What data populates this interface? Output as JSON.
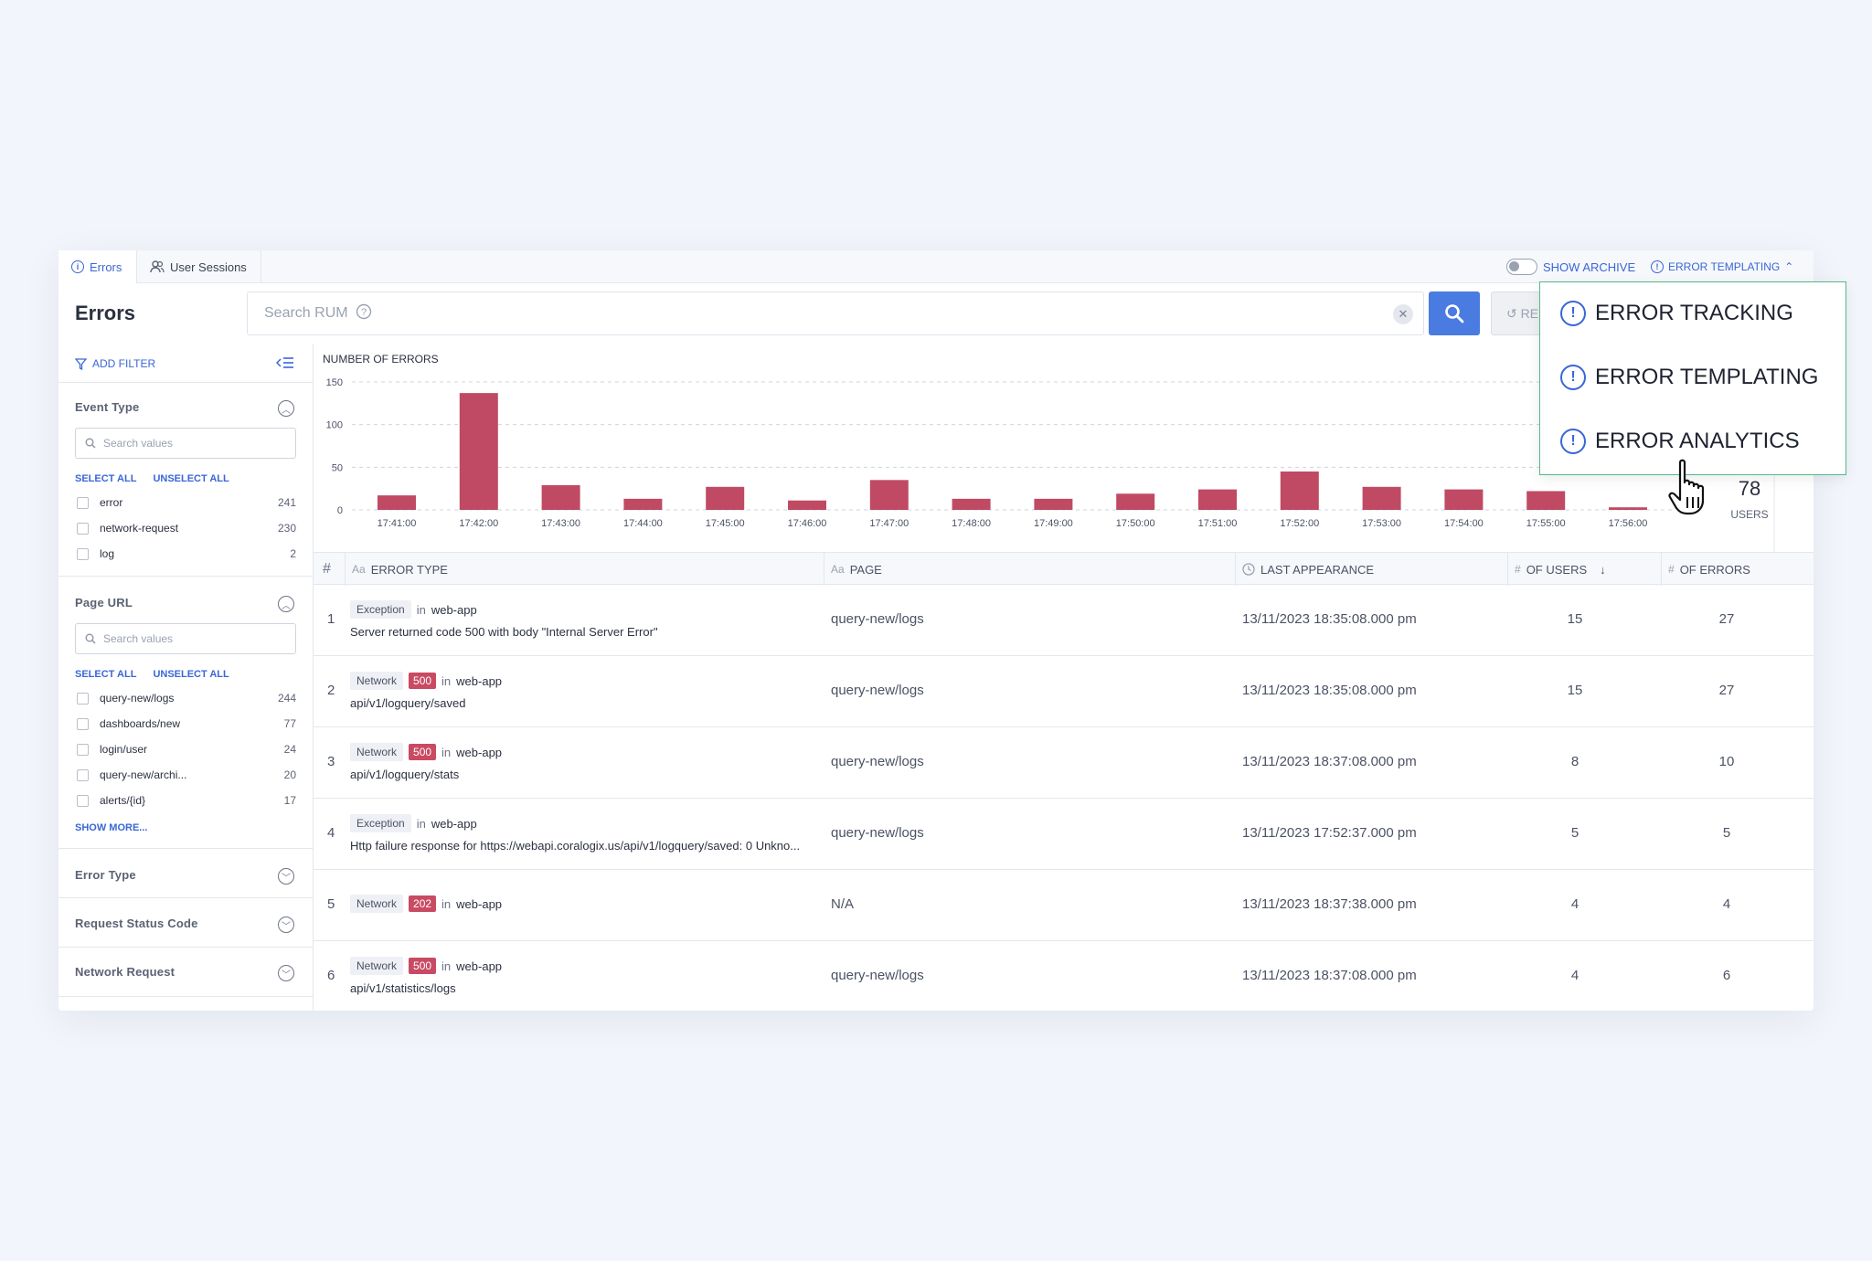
{
  "tabs": {
    "errors": "Errors",
    "sessions": "User Sessions"
  },
  "header": {
    "show_archive": "SHOW ARCHIVE",
    "template_menu": "ERROR TEMPLATING"
  },
  "page_title": "Errors",
  "search": {
    "placeholder": "Search RUM",
    "reset_label": "RE"
  },
  "sidebar": {
    "add_filter": "ADD FILTER",
    "select_all": "SELECT ALL",
    "unselect_all": "UNSELECT ALL",
    "search_placeholder": "Search values",
    "show_more": "SHOW MORE...",
    "event_type": {
      "title": "Event Type",
      "options": [
        {
          "label": "error",
          "count": "241"
        },
        {
          "label": "network-request",
          "count": "230"
        },
        {
          "label": "log",
          "count": "2"
        }
      ]
    },
    "page_url": {
      "title": "Page URL",
      "options": [
        {
          "label": "query-new/logs",
          "count": "244"
        },
        {
          "label": "dashboards/new",
          "count": "77"
        },
        {
          "label": "login/user",
          "count": "24"
        },
        {
          "label": "query-new/archi...",
          "count": "20"
        },
        {
          "label": "alerts/{id}",
          "count": "17"
        }
      ]
    },
    "collapsed_groups": [
      "Error Type",
      "Request Status Code",
      "Network Request"
    ]
  },
  "chart_data": {
    "type": "bar",
    "title": "NUMBER OF ERRORS",
    "categories": [
      "17:41:00",
      "17:42:00",
      "17:43:00",
      "17:44:00",
      "17:45:00",
      "17:46:00",
      "17:47:00",
      "17:48:00",
      "17:49:00",
      "17:50:00",
      "17:51:00",
      "17:52:00",
      "17:53:00",
      "17:54:00",
      "17:55:00",
      "17:56:00"
    ],
    "values": [
      17,
      137,
      29,
      13,
      27,
      11,
      35,
      13,
      13,
      19,
      24,
      45,
      27,
      24,
      22,
      3
    ],
    "yticks": [
      0,
      50,
      100,
      150
    ],
    "ylim": [
      0,
      150
    ],
    "grid": true,
    "bar_color": "#c04a63"
  },
  "summary": {
    "users_count": "78",
    "users_label": "USERS"
  },
  "table": {
    "headers": {
      "num": "#",
      "error_type": "ERROR TYPE",
      "page": "PAGE",
      "last": "LAST APPEARANCE",
      "users": "OF USERS",
      "errors": "OF ERRORS"
    },
    "type_icons": {
      "text": "Aa",
      "number": "#"
    },
    "rows": [
      {
        "n": "1",
        "type": "Exception",
        "code": "",
        "in": "in",
        "app": "web-app",
        "message": "Server returned code 500 with body \"Internal Server Error\"",
        "page": "query-new/logs",
        "last": "13/11/2023 18:35:08.000 pm",
        "users": "15",
        "errors": "27"
      },
      {
        "n": "2",
        "type": "Network",
        "code": "500",
        "in": "in",
        "app": "web-app",
        "message": "api/v1/logquery/saved",
        "page": "query-new/logs",
        "last": "13/11/2023 18:35:08.000 pm",
        "users": "15",
        "errors": "27"
      },
      {
        "n": "3",
        "type": "Network",
        "code": "500",
        "in": "in",
        "app": "web-app",
        "message": "api/v1/logquery/stats",
        "page": "query-new/logs",
        "last": "13/11/2023 18:37:08.000 pm",
        "users": "8",
        "errors": "10"
      },
      {
        "n": "4",
        "type": "Exception",
        "code": "",
        "in": "in",
        "app": "web-app",
        "message": "Http failure response for https://webapi.coralogix.us/api/v1/logquery/saved: 0 Unkno...",
        "page": "query-new/logs",
        "last": "13/11/2023 17:52:37.000 pm",
        "users": "5",
        "errors": "5"
      },
      {
        "n": "5",
        "type": "Network",
        "code": "202",
        "in": "in",
        "app": "web-app",
        "message": "",
        "page": "N/A",
        "last": "13/11/2023 18:37:38.000 pm",
        "users": "4",
        "errors": "4"
      },
      {
        "n": "6",
        "type": "Network",
        "code": "500",
        "in": "in",
        "app": "web-app",
        "message": "api/v1/statistics/logs",
        "page": "query-new/logs",
        "last": "13/11/2023 18:37:08.000 pm",
        "users": "4",
        "errors": "6"
      }
    ]
  },
  "dropdown": {
    "items": [
      "ERROR TRACKING",
      "ERROR TEMPLATING",
      "ERROR ANALYTICS"
    ]
  },
  "icons": [
    "info-icon",
    "users-icon",
    "search-icon",
    "help-icon",
    "clear-icon",
    "reset-icon",
    "filter-icon",
    "collapse-list-icon",
    "chevron-up-icon",
    "chevron-down-icon",
    "clock-icon",
    "sort-down-icon",
    "hand-cursor-icon"
  ]
}
